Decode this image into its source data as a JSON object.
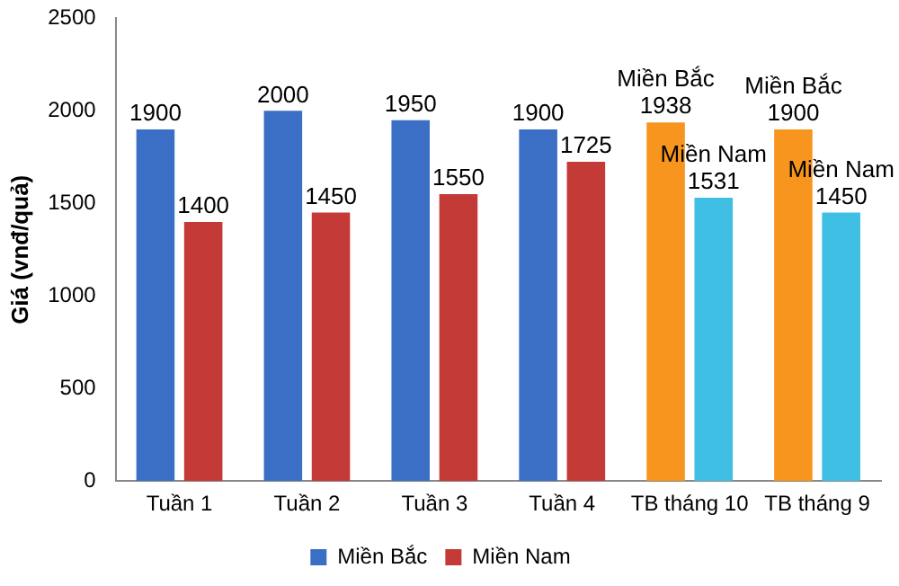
{
  "chart_data": {
    "type": "bar",
    "ylabel": "Giá (vnđ/quả)",
    "categories": [
      "Tuần 1",
      "Tuần 2",
      "Tuần 3",
      "Tuần 4",
      "TB tháng 10",
      "TB tháng 9"
    ],
    "series": [
      {
        "name": "Miền Bắc",
        "colors": [
          "#3b6fc6",
          "#3b6fc6",
          "#3b6fc6",
          "#3b6fc6",
          "#f7951e",
          "#f7951e"
        ],
        "values": [
          1900,
          2000,
          1950,
          1900,
          1938,
          1900
        ]
      },
      {
        "name": "Miền Nam",
        "colors": [
          "#c43a36",
          "#c43a36",
          "#c43a36",
          "#c43a36",
          "#3fbfe3",
          "#3fbfe3"
        ],
        "values": [
          1400,
          1450,
          1550,
          1725,
          1531,
          1450
        ]
      }
    ],
    "ylim": [
      0,
      2500
    ],
    "yticks": [
      0,
      500,
      1000,
      1500,
      2000,
      2500
    ],
    "grid": false,
    "legend": "bottom",
    "data_labels": true,
    "annotations": [
      {
        "text": "Miền Bắc",
        "x": "TB tháng 10",
        "y": 1938
      },
      {
        "text": "Miền Nam",
        "x": "TB tháng 10",
        "y": 1531
      },
      {
        "text": "Miền Bắc",
        "x": "TB tháng 9",
        "y": 1900
      },
      {
        "text": "Miền Nam",
        "x": "TB tháng 9",
        "y": 1450
      }
    ]
  }
}
